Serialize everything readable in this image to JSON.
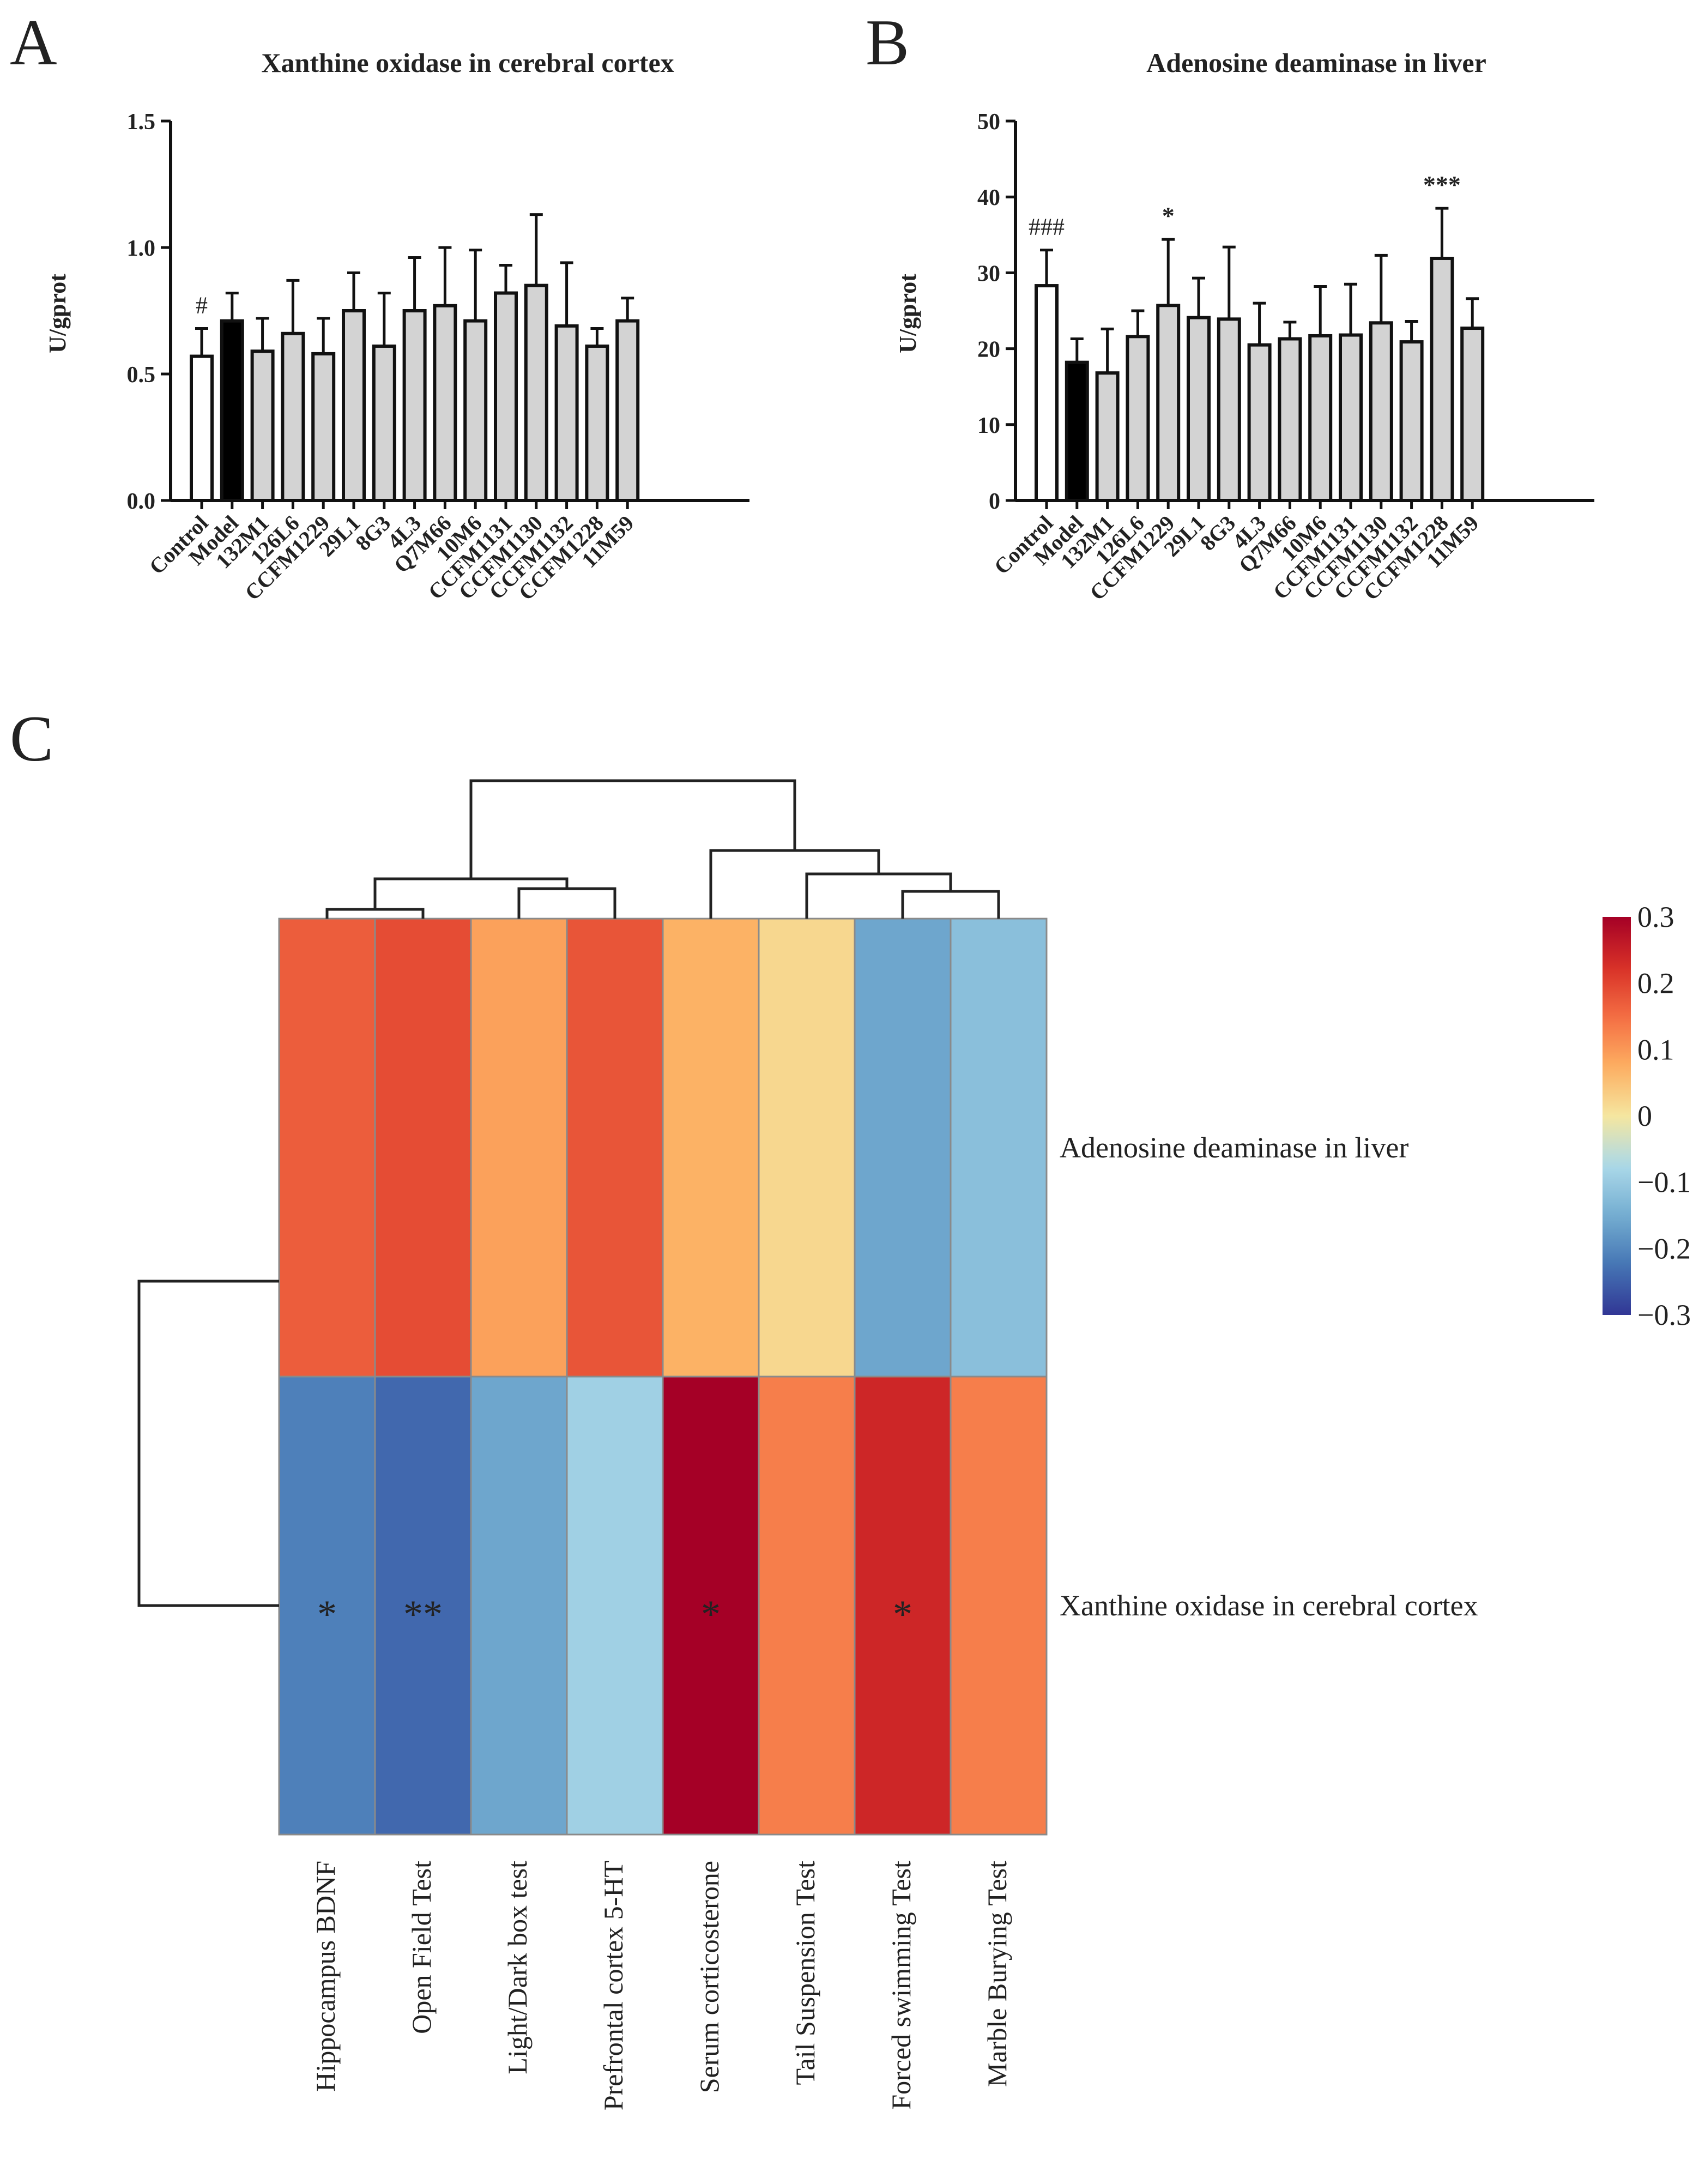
{
  "panel_letters": [
    "A",
    "B",
    "C"
  ],
  "chart_data": [
    {
      "type": "bar",
      "panel": "A",
      "title": "Xanthine oxidase in cerebral cortex",
      "ylabel": "U/gprot",
      "xlabel": "",
      "ylim": [
        0,
        1.5
      ],
      "yticks": [
        "0.0",
        "0.5",
        "1.0",
        "1.5"
      ],
      "categories": [
        "Control",
        "Model",
        "132M1",
        "126L6",
        "CCFM1229",
        "29L1",
        "8G3",
        "4L3",
        "Q7M66",
        "10M6",
        "CCFM1131",
        "CCFM1130",
        "CCFM1132",
        "CCFM1228",
        "11M59"
      ],
      "values": [
        0.57,
        0.71,
        0.59,
        0.66,
        0.58,
        0.75,
        0.61,
        0.75,
        0.77,
        0.71,
        0.82,
        0.85,
        0.69,
        0.61,
        0.71
      ],
      "errors": [
        0.11,
        0.11,
        0.13,
        0.21,
        0.14,
        0.15,
        0.21,
        0.21,
        0.23,
        0.28,
        0.11,
        0.28,
        0.25,
        0.07,
        0.09
      ],
      "bar_colors": [
        "#ffffff",
        "#000000",
        "#d3d3d3",
        "#d3d3d3",
        "#d3d3d3",
        "#d3d3d3",
        "#d3d3d3",
        "#d3d3d3",
        "#d3d3d3",
        "#d3d3d3",
        "#d3d3d3",
        "#d3d3d3",
        "#d3d3d3",
        "#d3d3d3",
        "#d3d3d3"
      ],
      "annotations": [
        {
          "category": "Control",
          "text": "#"
        }
      ]
    },
    {
      "type": "bar",
      "panel": "B",
      "title": "Adenosine deaminase in liver",
      "ylabel": "U/gprot",
      "xlabel": "",
      "ylim": [
        0,
        50
      ],
      "yticks": [
        "0",
        "10",
        "20",
        "30",
        "40",
        "50"
      ],
      "categories": [
        "Control",
        "Model",
        "132M1",
        "126L6",
        "CCFM1229",
        "29L1",
        "8G3",
        "4L3",
        "Q7M66",
        "10M6",
        "CCFM1131",
        "CCFM1130",
        "CCFM1132",
        "CCFM1228",
        "11M59"
      ],
      "values": [
        28.3,
        18.2,
        16.8,
        21.6,
        25.7,
        24.1,
        23.9,
        20.5,
        21.3,
        21.7,
        21.8,
        23.4,
        20.9,
        31.9,
        22.7
      ],
      "errors": [
        4.7,
        3.1,
        5.8,
        3.4,
        8.7,
        5.2,
        9.5,
        5.5,
        2.2,
        6.5,
        6.7,
        8.9,
        2.7,
        6.6,
        3.9
      ],
      "bar_colors": [
        "#ffffff",
        "#000000",
        "#d3d3d3",
        "#d3d3d3",
        "#d3d3d3",
        "#d3d3d3",
        "#d3d3d3",
        "#d3d3d3",
        "#d3d3d3",
        "#d3d3d3",
        "#d3d3d3",
        "#d3d3d3",
        "#d3d3d3",
        "#d3d3d3",
        "#d3d3d3"
      ],
      "annotations": [
        {
          "category": "Control",
          "text": "###"
        },
        {
          "category": "CCFM1229",
          "text": "*"
        },
        {
          "category": "CCFM1228",
          "text": "***"
        }
      ]
    },
    {
      "type": "heatmap",
      "panel": "C",
      "rows": [
        "Adenosine deaminase in liver",
        "Xanthine oxidase in cerebral cortex"
      ],
      "columns": [
        "Hippocampus BDNF",
        "Open Field Test",
        "Light/Dark box test",
        "Prefrontal cortex 5-HT",
        "Serum corticosterone",
        "Tail Suspension Test",
        "Forced swimming Test",
        "Marble Burying Test"
      ],
      "values": [
        [
          0.17,
          0.19,
          0.09,
          0.18,
          0.07,
          0.02,
          -0.16,
          -0.12
        ],
        [
          -0.21,
          -0.24,
          -0.16,
          -0.09,
          0.3,
          0.13,
          0.24,
          0.13
        ]
      ],
      "significance": [
        [
          "",
          "",
          "",
          "",
          "",
          "",
          "",
          ""
        ],
        [
          "*",
          "**",
          "",
          "",
          "*",
          "",
          "*",
          ""
        ]
      ],
      "color_range": [
        -0.3,
        0.3
      ],
      "colorbar_ticks": [
        "0.3",
        "0.2",
        "0.1",
        "0",
        "−0.1",
        "−0.2",
        "−0.3"
      ],
      "colormap": [
        "#313695",
        "#4575b4",
        "#74add1",
        "#abd9e9",
        "#f5e6a0",
        "#fdae61",
        "#f46d43",
        "#d73027",
        "#a50026"
      ],
      "column_dendrogram": "((Hippocampus BDNF, Open Field Test), (Light/Dark box test, Prefrontal cortex 5-HT)), (Serum corticosterone, (Tail Suspension Test, (Forced swimming Test, Marble Burying Test)))",
      "row_dendrogram": "(Adenosine deaminase in liver, Xanthine oxidase in cerebral cortex)"
    }
  ]
}
